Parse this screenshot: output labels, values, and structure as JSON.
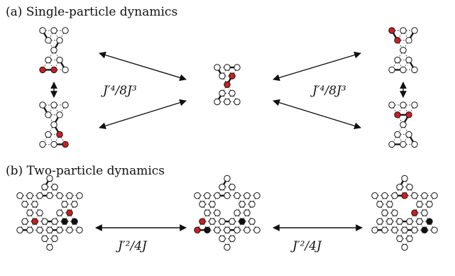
{
  "panels": {
    "a": {
      "label": "(a) Single-particle dynamics",
      "rate": "J′⁴/8J³"
    },
    "b": {
      "label": "(b) Two-particle dynamics",
      "rate": "J′²/4J"
    }
  },
  "colors": {
    "occupied_red": "#cc1f1f",
    "occupied_black": "#111111",
    "empty_site": "#ffffff",
    "bond": "#111111"
  },
  "markers": [
    "empty-site",
    "red-particle",
    "black-particle",
    "strong-bond",
    "weak-bond"
  ]
}
